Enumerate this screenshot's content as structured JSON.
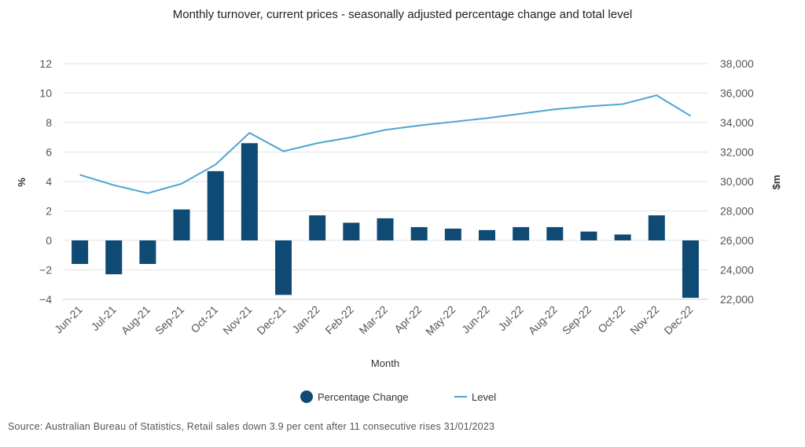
{
  "chart_data": {
    "type": "bar+line",
    "title": "Monthly turnover, current prices - seasonally adjusted percentage change and total level",
    "xlabel": "Month",
    "ylabel_left": "%",
    "ylabel_right": "$m",
    "categories": [
      "Jun-21",
      "Jul-21",
      "Aug-21",
      "Sep-21",
      "Oct-21",
      "Nov-21",
      "Dec-21",
      "Jan-22",
      "Feb-22",
      "Mar-22",
      "Apr-22",
      "May-22",
      "Jun-22",
      "Jul-22",
      "Aug-22",
      "Sep-22",
      "Oct-22",
      "Nov-22",
      "Dec-22"
    ],
    "ylim_left": [
      -4,
      12
    ],
    "yticks_left": [
      "−4",
      "−2",
      "0",
      "2",
      "4",
      "6",
      "8",
      "10",
      "12"
    ],
    "ylim_right": [
      22000,
      38000
    ],
    "yticks_right": [
      "22,000",
      "24,000",
      "26,000",
      "28,000",
      "30,000",
      "32,000",
      "34,000",
      "36,000",
      "38,000"
    ],
    "grid": true,
    "legend_position": "bottom",
    "series": [
      {
        "name": "Percentage Change",
        "type": "bar",
        "axis": "left",
        "color": "#0f4a75",
        "values": [
          -1.6,
          -2.3,
          -1.6,
          2.1,
          4.7,
          6.6,
          -3.7,
          1.7,
          1.2,
          1.5,
          0.9,
          0.8,
          0.7,
          0.9,
          0.9,
          0.6,
          0.4,
          1.7,
          -3.9
        ]
      },
      {
        "name": "Level",
        "type": "line",
        "axis": "right",
        "color": "#4ea4d1",
        "values": [
          30450,
          29750,
          29200,
          29850,
          31150,
          33300,
          32050,
          32600,
          33000,
          33500,
          33800,
          34050,
          34300,
          34600,
          34900,
          35100,
          35250,
          35850,
          34450
        ]
      }
    ]
  },
  "source": "Source: Australian Bureau of Statistics, Retail sales down 3.9 per cent after 11 consecutive rises 31/01/2023"
}
